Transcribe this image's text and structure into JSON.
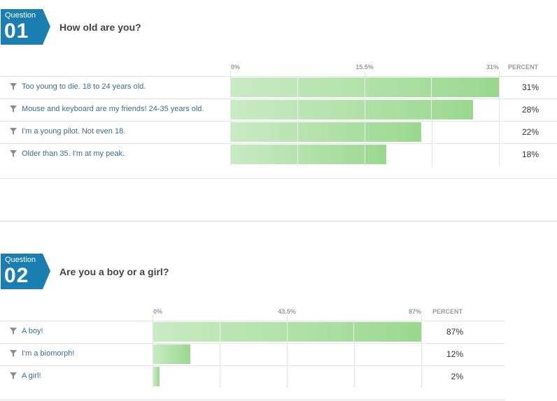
{
  "questions": [
    {
      "word": "Question",
      "number": "01",
      "title": "How old are you?",
      "axis": {
        "min": "0%",
        "mid": "15.5%",
        "max": "31%",
        "header": "PERCENT",
        "scale_max": 31
      },
      "answers": [
        {
          "label": "Too young to die. 18 to 24 years old.",
          "percent": 31,
          "percent_text": "31%"
        },
        {
          "label": "Mouse and keyboard are my friends! 24-35 years old.",
          "percent": 28,
          "percent_text": "28%"
        },
        {
          "label": "I'm a young pilot. Not even 18.",
          "percent": 22,
          "percent_text": "22%"
        },
        {
          "label": "Older than 35. I'm at my peak.",
          "percent": 18,
          "percent_text": "18%"
        }
      ]
    },
    {
      "word": "Question",
      "number": "02",
      "title": "Are you a boy or a girl?",
      "axis": {
        "min": "0%",
        "mid": "43.5%",
        "max": "87%",
        "header": "PERCENT",
        "scale_max": 87
      },
      "answers": [
        {
          "label": "A boy!",
          "percent": 87,
          "percent_text": "87%"
        },
        {
          "label": "I'm a biomorph!",
          "percent": 12,
          "percent_text": "12%"
        },
        {
          "label": "A girl!",
          "percent": 2,
          "percent_text": "2%"
        }
      ]
    }
  ],
  "colors": {
    "badge": "#1a7fb0",
    "bar_start": "#c9eac4",
    "bar_end": "#9ad88e",
    "label": "#3a6f98"
  },
  "icons": {
    "row_icon": "filter-icon"
  }
}
